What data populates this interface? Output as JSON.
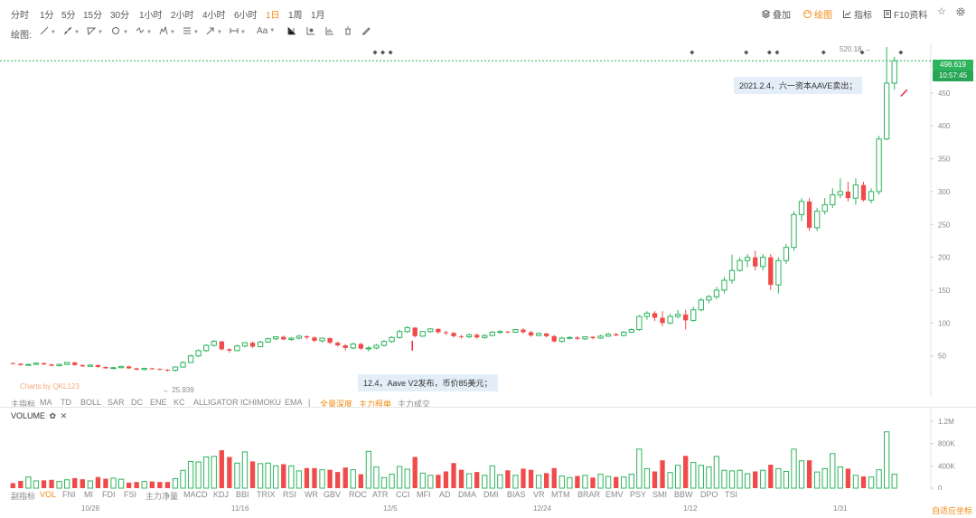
{
  "timeframes": [
    {
      "label": "分时",
      "active": false
    },
    {
      "label": "1分",
      "active": false
    },
    {
      "label": "5分",
      "active": false
    },
    {
      "label": "15分",
      "active": false
    },
    {
      "label": "30分",
      "active": false
    },
    {
      "label": "1小时",
      "active": false
    },
    {
      "label": "2小时",
      "active": false
    },
    {
      "label": "4小时",
      "active": false
    },
    {
      "label": "6小时",
      "active": false
    },
    {
      "label": "1日",
      "active": true
    },
    {
      "label": "1周",
      "active": false
    },
    {
      "label": "1月",
      "active": false
    }
  ],
  "right_tools": {
    "overlay": "叠加",
    "draw": "绘图",
    "indicators": "指标",
    "f10": "F10资料"
  },
  "draw_label": "绘图:",
  "draw_text_tool": "Aa",
  "indicators_main": [
    "主指标",
    "MA",
    "TD",
    "BOLL",
    "SAR",
    "DC",
    "ENE",
    "KC",
    "ALLIGATOR",
    "ICHIMOKU",
    "EMA",
    "|",
    "全量深度",
    "主力程单",
    "主力成交"
  ],
  "volume_title": "VOLUME",
  "sub_indicators": [
    "副指标",
    "VOL",
    "FNI",
    "MI",
    "FDI",
    "FSI",
    "主力净量",
    "MACD",
    "KDJ",
    "BBI",
    "TRIX",
    "RSI",
    "WR",
    "GBV",
    "ROC",
    "ATR",
    "CCI",
    "MFI",
    "AD",
    "DMA",
    "DMI",
    "BIAS",
    "VR",
    "MTM",
    "BRAR",
    "EMV",
    "PSY",
    "SMI",
    "BBW",
    "DPO",
    "TSI"
  ],
  "auto_fit": "自适应坐标",
  "watermark": "Charts by QKL123",
  "annotations": {
    "note1": "2021.2.4，六一资本AAVE卖出；",
    "note2": "12.4，Aave V2发布，币价85美元；"
  },
  "last_price": "498.619",
  "countdown": "10:57:45",
  "high_label": "520.18 →",
  "low_label": "← 25.939",
  "chart_data": {
    "type": "candlestick",
    "x_ticks": [
      "10/28",
      "11/16",
      "12/5",
      "12/24",
      "1/12",
      "1/31"
    ],
    "y_ticks": [
      50,
      100,
      150,
      200,
      250,
      300,
      350,
      400,
      450
    ],
    "volume_ticks": [
      "1.2M",
      "800K",
      "400K",
      "0"
    ],
    "ylim": [
      0,
      520
    ],
    "volume_max": 1200000,
    "colors": {
      "up": "#2db45d",
      "down": "#f04a4a"
    },
    "candles": [
      {
        "o": 39,
        "c": 38,
        "h": 40,
        "l": 37,
        "v": 90000
      },
      {
        "o": 38,
        "c": 36,
        "h": 39,
        "l": 35,
        "v": 130000
      },
      {
        "o": 36,
        "c": 37,
        "h": 38,
        "l": 35,
        "v": 200000
      },
      {
        "o": 37,
        "c": 39,
        "h": 40,
        "l": 36,
        "v": 130000
      },
      {
        "o": 39,
        "c": 37,
        "h": 40,
        "l": 36,
        "v": 140000
      },
      {
        "o": 37,
        "c": 35,
        "h": 38,
        "l": 34,
        "v": 150000
      },
      {
        "o": 35,
        "c": 37,
        "h": 38,
        "l": 34,
        "v": 120000
      },
      {
        "o": 37,
        "c": 40,
        "h": 41,
        "l": 36,
        "v": 150000
      },
      {
        "o": 40,
        "c": 36,
        "h": 41,
        "l": 35,
        "v": 180000
      },
      {
        "o": 36,
        "c": 34,
        "h": 37,
        "l": 33,
        "v": 160000
      },
      {
        "o": 34,
        "c": 36,
        "h": 37,
        "l": 33,
        "v": 130000
      },
      {
        "o": 36,
        "c": 33,
        "h": 37,
        "l": 32,
        "v": 200000
      },
      {
        "o": 33,
        "c": 31,
        "h": 34,
        "l": 30,
        "v": 170000
      },
      {
        "o": 31,
        "c": 32,
        "h": 33,
        "l": 30,
        "v": 180000
      },
      {
        "o": 32,
        "c": 34,
        "h": 35,
        "l": 31,
        "v": 160000
      },
      {
        "o": 34,
        "c": 31,
        "h": 35,
        "l": 30,
        "v": 100000
      },
      {
        "o": 31,
        "c": 29,
        "h": 32,
        "l": 28,
        "v": 110000
      },
      {
        "o": 29,
        "c": 31,
        "h": 32,
        "l": 28,
        "v": 120000
      },
      {
        "o": 31,
        "c": 30,
        "h": 32,
        "l": 29,
        "v": 120000
      },
      {
        "o": 30,
        "c": 29,
        "h": 31,
        "l": 28,
        "v": 110000
      },
      {
        "o": 29,
        "c": 28,
        "h": 30,
        "l": 26,
        "v": 110000
      },
      {
        "o": 28,
        "c": 33,
        "h": 34,
        "l": 26,
        "v": 170000
      },
      {
        "o": 33,
        "c": 40,
        "h": 42,
        "l": 32,
        "v": 320000
      },
      {
        "o": 40,
        "c": 50,
        "h": 52,
        "l": 39,
        "v": 480000
      },
      {
        "o": 50,
        "c": 58,
        "h": 60,
        "l": 48,
        "v": 470000
      },
      {
        "o": 58,
        "c": 66,
        "h": 68,
        "l": 56,
        "v": 560000
      },
      {
        "o": 66,
        "c": 72,
        "h": 74,
        "l": 64,
        "v": 570000
      },
      {
        "o": 72,
        "c": 60,
        "h": 73,
        "l": 58,
        "v": 680000
      },
      {
        "o": 60,
        "c": 58,
        "h": 62,
        "l": 55,
        "v": 560000
      },
      {
        "o": 58,
        "c": 65,
        "h": 67,
        "l": 57,
        "v": 450000
      },
      {
        "o": 65,
        "c": 70,
        "h": 71,
        "l": 63,
        "v": 650000
      },
      {
        "o": 70,
        "c": 64,
        "h": 72,
        "l": 62,
        "v": 480000
      },
      {
        "o": 64,
        "c": 71,
        "h": 73,
        "l": 63,
        "v": 440000
      },
      {
        "o": 71,
        "c": 76,
        "h": 78,
        "l": 70,
        "v": 450000
      },
      {
        "o": 76,
        "c": 79,
        "h": 80,
        "l": 74,
        "v": 400000
      },
      {
        "o": 79,
        "c": 75,
        "h": 81,
        "l": 74,
        "v": 430000
      },
      {
        "o": 75,
        "c": 77,
        "h": 79,
        "l": 73,
        "v": 400000
      },
      {
        "o": 77,
        "c": 80,
        "h": 82,
        "l": 75,
        "v": 310000
      },
      {
        "o": 80,
        "c": 78,
        "h": 81,
        "l": 75,
        "v": 360000
      },
      {
        "o": 78,
        "c": 73,
        "h": 80,
        "l": 71,
        "v": 360000
      },
      {
        "o": 73,
        "c": 77,
        "h": 78,
        "l": 70,
        "v": 330000
      },
      {
        "o": 77,
        "c": 70,
        "h": 78,
        "l": 68,
        "v": 330000
      },
      {
        "o": 70,
        "c": 66,
        "h": 72,
        "l": 64,
        "v": 290000
      },
      {
        "o": 66,
        "c": 62,
        "h": 68,
        "l": 58,
        "v": 370000
      },
      {
        "o": 62,
        "c": 68,
        "h": 70,
        "l": 60,
        "v": 330000
      },
      {
        "o": 68,
        "c": 61,
        "h": 70,
        "l": 59,
        "v": 250000
      },
      {
        "o": 61,
        "c": 62,
        "h": 65,
        "l": 57,
        "v": 660000
      },
      {
        "o": 62,
        "c": 66,
        "h": 68,
        "l": 60,
        "v": 380000
      },
      {
        "o": 66,
        "c": 72,
        "h": 74,
        "l": 64,
        "v": 190000
      },
      {
        "o": 72,
        "c": 78,
        "h": 80,
        "l": 70,
        "v": 250000
      },
      {
        "o": 78,
        "c": 87,
        "h": 90,
        "l": 76,
        "v": 390000
      },
      {
        "o": 87,
        "c": 93,
        "h": 95,
        "l": 85,
        "v": 340000
      },
      {
        "o": 93,
        "c": 80,
        "h": 94,
        "l": 78,
        "v": 560000
      },
      {
        "o": 80,
        "c": 87,
        "h": 88,
        "l": 79,
        "v": 270000
      },
      {
        "o": 87,
        "c": 91,
        "h": 92,
        "l": 85,
        "v": 230000
      },
      {
        "o": 91,
        "c": 86,
        "h": 92,
        "l": 84,
        "v": 240000
      },
      {
        "o": 86,
        "c": 85,
        "h": 88,
        "l": 82,
        "v": 300000
      },
      {
        "o": 85,
        "c": 80,
        "h": 86,
        "l": 78,
        "v": 450000
      },
      {
        "o": 80,
        "c": 79,
        "h": 82,
        "l": 76,
        "v": 330000
      },
      {
        "o": 79,
        "c": 82,
        "h": 84,
        "l": 77,
        "v": 260000
      },
      {
        "o": 82,
        "c": 78,
        "h": 84,
        "l": 76,
        "v": 290000
      },
      {
        "o": 78,
        "c": 81,
        "h": 83,
        "l": 76,
        "v": 230000
      },
      {
        "o": 81,
        "c": 86,
        "h": 88,
        "l": 80,
        "v": 400000
      },
      {
        "o": 86,
        "c": 87,
        "h": 89,
        "l": 84,
        "v": 240000
      },
      {
        "o": 87,
        "c": 86,
        "h": 88,
        "l": 84,
        "v": 320000
      },
      {
        "o": 86,
        "c": 90,
        "h": 91,
        "l": 85,
        "v": 230000
      },
      {
        "o": 90,
        "c": 86,
        "h": 92,
        "l": 84,
        "v": 350000
      },
      {
        "o": 86,
        "c": 81,
        "h": 88,
        "l": 79,
        "v": 330000
      },
      {
        "o": 81,
        "c": 84,
        "h": 86,
        "l": 80,
        "v": 230000
      },
      {
        "o": 84,
        "c": 80,
        "h": 85,
        "l": 78,
        "v": 270000
      },
      {
        "o": 80,
        "c": 72,
        "h": 82,
        "l": 70,
        "v": 360000
      },
      {
        "o": 72,
        "c": 77,
        "h": 79,
        "l": 70,
        "v": 220000
      },
      {
        "o": 77,
        "c": 78,
        "h": 80,
        "l": 75,
        "v": 190000
      },
      {
        "o": 78,
        "c": 76,
        "h": 80,
        "l": 74,
        "v": 220000
      },
      {
        "o": 76,
        "c": 79,
        "h": 80,
        "l": 74,
        "v": 230000
      },
      {
        "o": 79,
        "c": 77,
        "h": 80,
        "l": 75,
        "v": 190000
      },
      {
        "o": 77,
        "c": 80,
        "h": 82,
        "l": 76,
        "v": 250000
      },
      {
        "o": 80,
        "c": 83,
        "h": 85,
        "l": 79,
        "v": 210000
      },
      {
        "o": 83,
        "c": 81,
        "h": 85,
        "l": 80,
        "v": 200000
      },
      {
        "o": 81,
        "c": 86,
        "h": 88,
        "l": 80,
        "v": 200000
      },
      {
        "o": 86,
        "c": 90,
        "h": 92,
        "l": 85,
        "v": 250000
      },
      {
        "o": 90,
        "c": 110,
        "h": 112,
        "l": 88,
        "v": 700000
      },
      {
        "o": 110,
        "c": 115,
        "h": 118,
        "l": 105,
        "v": 350000
      },
      {
        "o": 115,
        "c": 108,
        "h": 118,
        "l": 103,
        "v": 300000
      },
      {
        "o": 108,
        "c": 100,
        "h": 118,
        "l": 95,
        "v": 500000
      },
      {
        "o": 100,
        "c": 110,
        "h": 114,
        "l": 98,
        "v": 280000
      },
      {
        "o": 110,
        "c": 113,
        "h": 120,
        "l": 107,
        "v": 410000
      },
      {
        "o": 113,
        "c": 104,
        "h": 120,
        "l": 90,
        "v": 580000
      },
      {
        "o": 104,
        "c": 120,
        "h": 125,
        "l": 102,
        "v": 460000
      },
      {
        "o": 120,
        "c": 135,
        "h": 138,
        "l": 118,
        "v": 410000
      },
      {
        "o": 135,
        "c": 140,
        "h": 143,
        "l": 130,
        "v": 380000
      },
      {
        "o": 140,
        "c": 150,
        "h": 155,
        "l": 136,
        "v": 570000
      },
      {
        "o": 150,
        "c": 165,
        "h": 170,
        "l": 145,
        "v": 320000
      },
      {
        "o": 165,
        "c": 180,
        "h": 204,
        "l": 160,
        "v": 310000
      },
      {
        "o": 180,
        "c": 195,
        "h": 200,
        "l": 178,
        "v": 320000
      },
      {
        "o": 195,
        "c": 200,
        "h": 205,
        "l": 185,
        "v": 260000
      },
      {
        "o": 200,
        "c": 186,
        "h": 210,
        "l": 180,
        "v": 300000
      },
      {
        "o": 186,
        "c": 200,
        "h": 205,
        "l": 180,
        "v": 320000
      },
      {
        "o": 200,
        "c": 158,
        "h": 205,
        "l": 150,
        "v": 420000
      },
      {
        "o": 158,
        "c": 195,
        "h": 200,
        "l": 145,
        "v": 350000
      },
      {
        "o": 195,
        "c": 215,
        "h": 220,
        "l": 190,
        "v": 300000
      },
      {
        "o": 215,
        "c": 265,
        "h": 270,
        "l": 210,
        "v": 700000
      },
      {
        "o": 265,
        "c": 285,
        "h": 290,
        "l": 255,
        "v": 490000
      },
      {
        "o": 285,
        "c": 245,
        "h": 290,
        "l": 240,
        "v": 500000
      },
      {
        "o": 245,
        "c": 270,
        "h": 275,
        "l": 240,
        "v": 290000
      },
      {
        "o": 270,
        "c": 280,
        "h": 290,
        "l": 265,
        "v": 350000
      },
      {
        "o": 280,
        "c": 295,
        "h": 305,
        "l": 275,
        "v": 620000
      },
      {
        "o": 295,
        "c": 300,
        "h": 320,
        "l": 290,
        "v": 380000
      },
      {
        "o": 300,
        "c": 290,
        "h": 315,
        "l": 285,
        "v": 350000
      },
      {
        "o": 290,
        "c": 310,
        "h": 320,
        "l": 280,
        "v": 230000
      },
      {
        "o": 310,
        "c": 287,
        "h": 315,
        "l": 285,
        "v": 210000
      },
      {
        "o": 287,
        "c": 300,
        "h": 305,
        "l": 282,
        "v": 200000
      },
      {
        "o": 300,
        "c": 380,
        "h": 385,
        "l": 295,
        "v": 330000
      },
      {
        "o": 380,
        "c": 465,
        "h": 520,
        "l": 378,
        "v": 1010000
      },
      {
        "o": 465,
        "c": 499,
        "h": 505,
        "l": 455,
        "v": 250000
      }
    ]
  }
}
